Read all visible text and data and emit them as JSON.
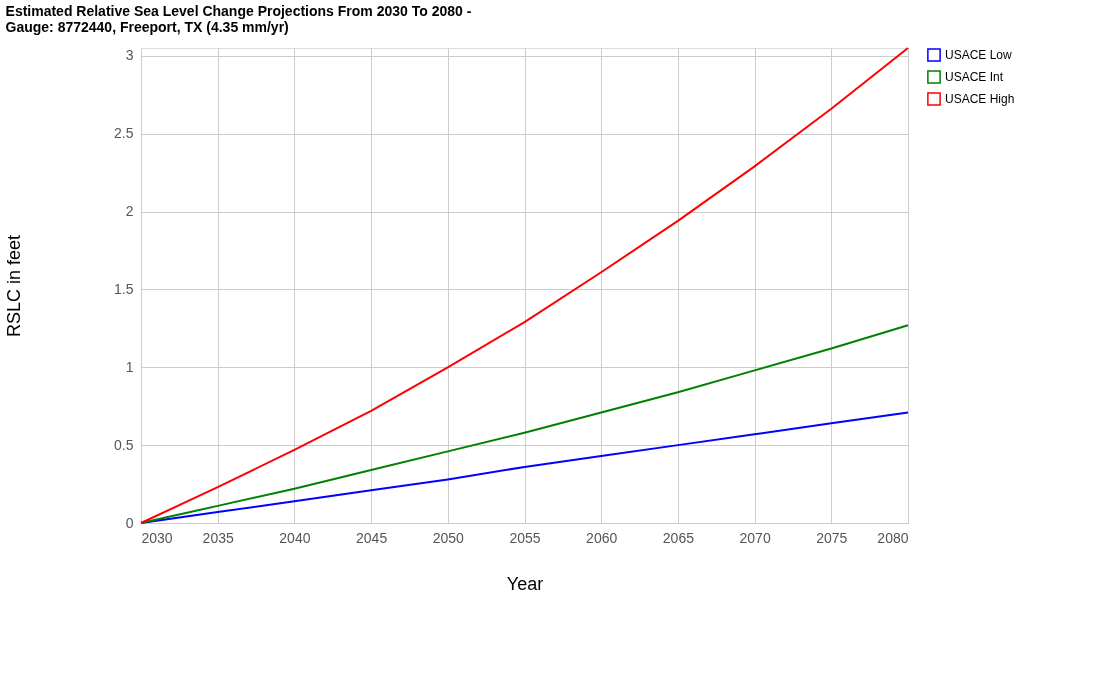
{
  "chart_data": {
    "type": "line",
    "title": "Estimated Relative Sea Level Change Projections From 2030 To 2080 - Gauge: 8772440, Freeport, TX (4.35 mm/yr)",
    "xlabel": "Year",
    "ylabel": "RSLC in feet",
    "x": [
      2030,
      2035,
      2040,
      2045,
      2050,
      2055,
      2060,
      2065,
      2070,
      2075,
      2080
    ],
    "series": [
      {
        "name": "USACE Low",
        "color": "#0000ff",
        "values": [
          0,
          0.07,
          0.14,
          0.21,
          0.28,
          0.36,
          0.43,
          0.5,
          0.57,
          0.64,
          0.71
        ]
      },
      {
        "name": "USACE Int",
        "color": "#008000",
        "values": [
          0,
          0.11,
          0.22,
          0.34,
          0.46,
          0.58,
          0.71,
          0.84,
          0.98,
          1.12,
          1.27
        ]
      },
      {
        "name": "USACE High",
        "color": "#ff0000",
        "values": [
          0,
          0.23,
          0.47,
          0.72,
          1.0,
          1.29,
          1.61,
          1.94,
          2.29,
          2.66,
          3.05
        ]
      }
    ],
    "xlim": [
      2030,
      2080
    ],
    "xticks": [
      2030,
      2035,
      2040,
      2045,
      2050,
      2055,
      2060,
      2065,
      2070,
      2075,
      2080
    ],
    "ylim": [
      0,
      3.05
    ],
    "yticks": [
      0,
      0.5,
      1,
      1.5,
      2,
      2.5,
      3
    ],
    "grid": true,
    "legend": "top right",
    "marker": "none",
    "line_style": "solid"
  }
}
